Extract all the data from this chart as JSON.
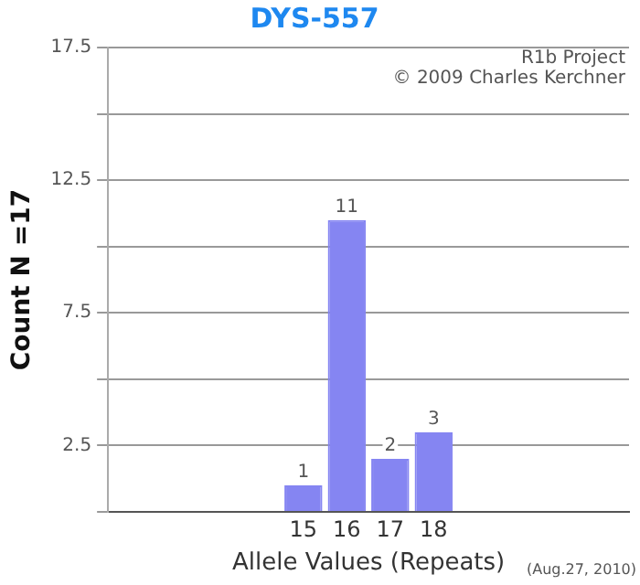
{
  "chart_data": {
    "type": "bar",
    "title": "DYS-557",
    "xlabel": "Allele Values (Repeats)",
    "ylabel": "Count N =17",
    "categories": [
      null,
      null,
      null,
      null,
      "15",
      "16",
      "17",
      "18",
      null,
      null,
      null,
      null
    ],
    "values": [
      null,
      null,
      null,
      null,
      1,
      11,
      2,
      3,
      null,
      null,
      null,
      null
    ],
    "color": "#8585f2",
    "data_labels": true,
    "ylim": [
      0,
      17.5
    ],
    "yticks": [
      {
        "value": 0,
        "label": null
      },
      2.5,
      {
        "value": 5,
        "label": null
      },
      7.5,
      {
        "value": 10,
        "label": null
      },
      12.5,
      {
        "value": 15,
        "label": null
      },
      17.5
    ],
    "grid": "y",
    "legend": false,
    "annotations": [
      "R1b Project",
      "© 2009 Charles Kerchner",
      "(Aug.27, 2010)"
    ]
  }
}
